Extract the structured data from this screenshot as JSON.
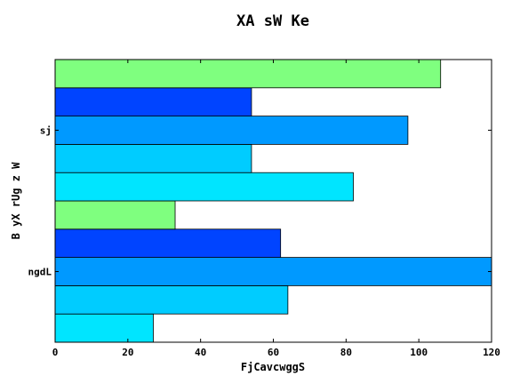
{
  "chart_data": {
    "type": "bar",
    "orientation": "horizontal",
    "title": "XA  sW Ke",
    "xlabel": "FjCavcwggS",
    "ylabel": "B yX rUg z W",
    "categories": [
      "ngdL",
      "sj"
    ],
    "xlim": [
      0,
      120
    ],
    "xticks": [
      0,
      20,
      40,
      60,
      80,
      100,
      120
    ],
    "grid": false,
    "series": [
      {
        "color": "#00e5ff",
        "values": [
          27,
          82
        ]
      },
      {
        "color": "#00ccff",
        "values": [
          64,
          54
        ]
      },
      {
        "color": "#0099ff",
        "values": [
          120,
          97
        ]
      },
      {
        "color": "#0044ff",
        "values": [
          62,
          54
        ]
      },
      {
        "color": "#7fff7f",
        "values": [
          33,
          106
        ]
      }
    ]
  }
}
